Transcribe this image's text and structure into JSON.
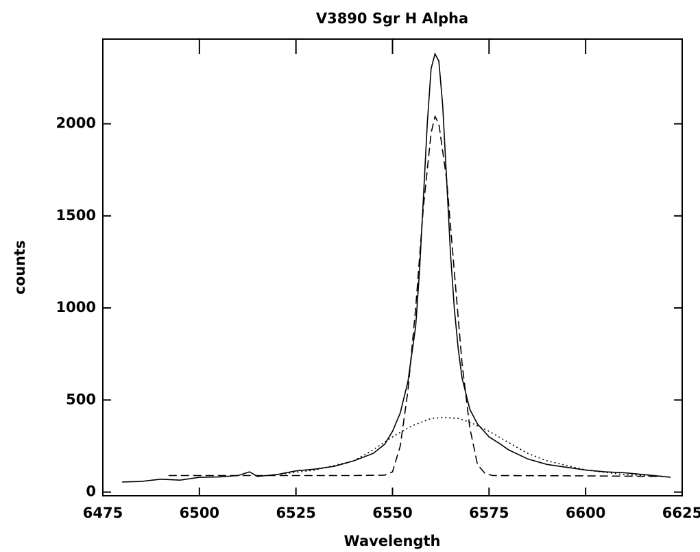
{
  "chart_data": {
    "type": "line",
    "title": "V3890 Sgr H Alpha",
    "x_label": "Wavelength",
    "y_label": "counts",
    "xlim": [
      6475,
      6625
    ],
    "ylim": [
      -20,
      2460
    ],
    "xticks": [
      6475,
      6500,
      6525,
      6550,
      6575,
      6600,
      6625
    ],
    "yticks": [
      0,
      500,
      1000,
      1500,
      2000
    ],
    "grid": false,
    "series": [
      {
        "color": "#000000",
        "dash": "solid",
        "x": [
          6480,
          6485,
          6490,
          6495,
          6500,
          6505,
          6510,
          6513,
          6515,
          6520,
          6525,
          6530,
          6535,
          6540,
          6545,
          6548,
          6550,
          6552,
          6554,
          6556,
          6557,
          6558,
          6559,
          6560,
          6561,
          6562,
          6563,
          6564,
          6565,
          6566,
          6567,
          6568,
          6570,
          6572,
          6575,
          6578,
          6580,
          6585,
          6590,
          6595,
          6600,
          6605,
          6610,
          6615,
          6620,
          6622
        ],
        "values": [
          55,
          58,
          70,
          65,
          80,
          82,
          90,
          110,
          85,
          95,
          115,
          125,
          140,
          170,
          210,
          260,
          330,
          430,
          600,
          900,
          1200,
          1600,
          2000,
          2300,
          2380,
          2340,
          2100,
          1700,
          1300,
          1000,
          780,
          620,
          450,
          370,
          300,
          260,
          230,
          180,
          150,
          135,
          120,
          110,
          105,
          95,
          85,
          80
        ]
      },
      {
        "color": "#000000",
        "dash": "dashed",
        "x": [
          6492,
          6500,
          6520,
          6540,
          6548,
          6550,
          6552,
          6554,
          6556,
          6558,
          6560,
          6561,
          6562,
          6564,
          6566,
          6568,
          6570,
          6572,
          6574,
          6576,
          6600,
          6620
        ],
        "values": [
          90,
          90,
          90,
          90,
          92,
          110,
          250,
          550,
          1000,
          1550,
          1950,
          2040,
          2000,
          1700,
          1200,
          700,
          350,
          150,
          100,
          90,
          88,
          85
        ]
      },
      {
        "color": "#000000",
        "dash": "dotted",
        "x": [
          6520,
          6530,
          6540,
          6545,
          6550,
          6555,
          6560,
          6563,
          6567,
          6570,
          6575,
          6580,
          6585,
          6590,
          6600,
          6610,
          6620
        ],
        "values": [
          95,
          120,
          170,
          230,
          300,
          360,
          400,
          405,
          400,
          380,
          330,
          270,
          210,
          170,
          120,
          95,
          85
        ]
      }
    ]
  }
}
